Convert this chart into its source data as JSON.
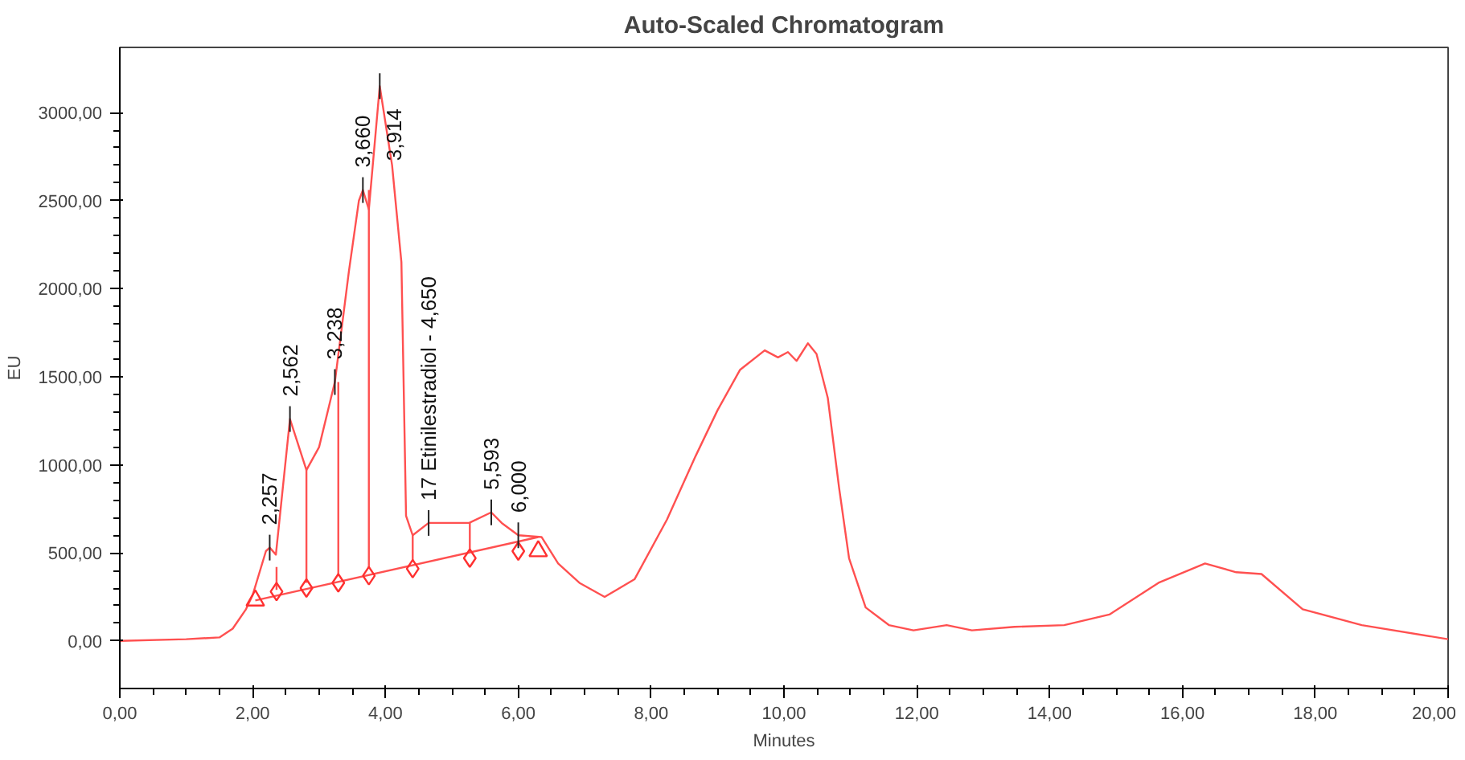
{
  "chart_data": {
    "type": "line",
    "title": "Auto-Scaled Chromatogram",
    "xlabel": "Minutes",
    "ylabel": "EU",
    "xlim": [
      0,
      20
    ],
    "ylim": [
      -270,
      3370
    ],
    "xticks": [
      {
        "value": 0,
        "label": "0,00"
      },
      {
        "value": 2,
        "label": "2,00"
      },
      {
        "value": 4,
        "label": "4,00"
      },
      {
        "value": 6,
        "label": "6,00"
      },
      {
        "value": 8,
        "label": "8,00"
      },
      {
        "value": 10,
        "label": "10,00"
      },
      {
        "value": 12,
        "label": "12,00"
      },
      {
        "value": 14,
        "label": "14,00"
      },
      {
        "value": 16,
        "label": "16,00"
      },
      {
        "value": 18,
        "label": "18,00"
      },
      {
        "value": 20,
        "label": "20,00"
      }
    ],
    "yticks": [
      {
        "value": 0,
        "label": "0,00"
      },
      {
        "value": 500,
        "label": "500,00"
      },
      {
        "value": 1000,
        "label": "1000,00"
      },
      {
        "value": 1500,
        "label": "1500,00"
      },
      {
        "value": 2000,
        "label": "2000,00"
      },
      {
        "value": 2500,
        "label": "2500,00"
      },
      {
        "value": 3000,
        "label": "3000,00"
      }
    ],
    "grid": false,
    "series": [
      {
        "color": "#ff5050",
        "marker": "none",
        "x": [
          0,
          1.0,
          1.5,
          1.7,
          1.9,
          2.0,
          2.2,
          2.257,
          2.35,
          2.562,
          2.81,
          3.0,
          3.238,
          3.45,
          3.6,
          3.66,
          3.75,
          3.914,
          4.1,
          4.24,
          4.31,
          4.41,
          4.65,
          5.26,
          5.593,
          5.75,
          6.0,
          6.35,
          6.6,
          6.92,
          7.3,
          7.75,
          8.24,
          8.67,
          9.0,
          9.34,
          9.71,
          9.91,
          10.06,
          10.19,
          10.36,
          10.49,
          10.66,
          10.83,
          10.98,
          11.23,
          11.58,
          11.95,
          12.45,
          12.83,
          13.47,
          14.22,
          14.9,
          15.64,
          16.34,
          16.81,
          17.19,
          17.81,
          18.7,
          20.0
        ],
        "values": [
          0,
          10,
          20,
          70,
          180,
          260,
          510,
          530,
          490,
          1260,
          970,
          1100,
          1470,
          2100,
          2500,
          2560,
          2450,
          3150,
          2700,
          2150,
          710,
          600,
          670,
          670,
          730,
          670,
          600,
          590,
          440,
          330,
          250,
          350,
          690,
          1050,
          1310,
          1540,
          1650,
          1610,
          1640,
          1590,
          1690,
          1630,
          1380,
          870,
          470,
          190,
          90,
          60,
          90,
          60,
          80,
          90,
          150,
          330,
          440,
          390,
          380,
          180,
          90,
          10
        ]
      },
      {
        "color": "#ff5050",
        "marker": "none",
        "x": [
          2.04,
          6.3
        ],
        "values": [
          230,
          590
        ]
      },
      {
        "color": "#ff5050",
        "marker": "none",
        "x": [
          2.36,
          2.36
        ],
        "values": [
          290,
          420
        ]
      },
      {
        "color": "#ff5050",
        "marker": "none",
        "x": [
          2.81,
          2.81
        ],
        "values": [
          330,
          970
        ]
      },
      {
        "color": "#ff5050",
        "marker": "none",
        "x": [
          3.29,
          3.29
        ],
        "values": [
          370,
          1470
        ]
      },
      {
        "color": "#ff5050",
        "marker": "none",
        "x": [
          3.75,
          3.75
        ],
        "values": [
          410,
          2560
        ]
      },
      {
        "color": "#ff5050",
        "marker": "none",
        "x": [
          4.41,
          4.41
        ],
        "values": [
          450,
          600
        ]
      },
      {
        "color": "#ff5050",
        "marker": "none",
        "x": [
          5.27,
          5.27
        ],
        "values": [
          510,
          670
        ]
      },
      {
        "type": "scatter",
        "color": "#ff3030",
        "marker": "diamond",
        "x": [
          2.36,
          2.81,
          3.29,
          3.75,
          4.41,
          5.27,
          6.0
        ],
        "values": [
          280,
          300,
          330,
          370,
          410,
          470,
          510
        ]
      },
      {
        "type": "scatter",
        "color": "#ff3030",
        "marker": "triangle",
        "x": [
          2.04,
          6.3
        ],
        "values": [
          230,
          510
        ]
      }
    ],
    "annotations": [
      {
        "text": "2,257",
        "x": 2.257,
        "y": 530
      },
      {
        "text": "2,562",
        "x": 2.562,
        "y": 1260
      },
      {
        "text": "3,238",
        "x": 3.238,
        "y": 1470
      },
      {
        "text": "3,660",
        "x": 3.66,
        "y": 2560
      },
      {
        "text": "3,914",
        "x": 3.914,
        "y": 3150
      },
      {
        "text": "17 Etinilestradiol - 4,650",
        "x": 4.65,
        "y": 670
      },
      {
        "text": "5,593",
        "x": 5.593,
        "y": 730
      },
      {
        "text": "6,000",
        "x": 6.0,
        "y": 600
      }
    ]
  }
}
